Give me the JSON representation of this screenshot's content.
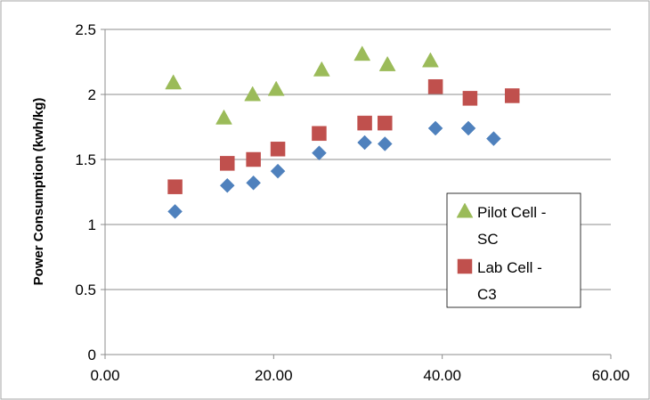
{
  "chart_data": {
    "type": "scatter",
    "title": "",
    "xlabel": "",
    "ylabel": "Power Consumption (kwh/kg)",
    "xlim": [
      0,
      60
    ],
    "ylim": [
      0,
      2.5
    ],
    "x_ticks": [
      0,
      20,
      40,
      60
    ],
    "x_tick_labels": [
      "0.00",
      "20.00",
      "40.00",
      "60.00"
    ],
    "y_ticks": [
      0,
      0.5,
      1,
      1.5,
      2,
      2.5
    ],
    "y_tick_labels": [
      "0",
      "0.5",
      "1",
      "1.5",
      "2",
      "2.5"
    ],
    "grid": "horizontal",
    "legend_position": "right",
    "series": [
      {
        "marker": "diamond",
        "color": "#4F81BD",
        "in_legend": false,
        "points": [
          [
            8.3,
            1.1
          ],
          [
            14.5,
            1.3
          ],
          [
            17.6,
            1.32
          ],
          [
            20.5,
            1.41
          ],
          [
            25.4,
            1.55
          ],
          [
            30.8,
            1.63
          ],
          [
            33.2,
            1.62
          ],
          [
            39.2,
            1.74
          ],
          [
            43.1,
            1.74
          ],
          [
            46.1,
            1.66
          ]
        ]
      },
      {
        "name": "Lab Cell - C3",
        "name_lines": [
          "Lab Cell -",
          "C3"
        ],
        "marker": "square",
        "color": "#C0504D",
        "in_legend": true,
        "points": [
          [
            8.3,
            1.29
          ],
          [
            14.5,
            1.47
          ],
          [
            17.6,
            1.5
          ],
          [
            20.5,
            1.58
          ],
          [
            25.4,
            1.7
          ],
          [
            30.8,
            1.78
          ],
          [
            33.2,
            1.78
          ],
          [
            39.2,
            2.06
          ],
          [
            43.3,
            1.97
          ],
          [
            48.3,
            1.99
          ]
        ]
      },
      {
        "name": "Pilot Cell - SC",
        "name_lines": [
          "Pilot Cell -",
          "SC"
        ],
        "marker": "triangle",
        "color": "#9BBB59",
        "in_legend": true,
        "points": [
          [
            8.1,
            2.09
          ],
          [
            14.1,
            1.82
          ],
          [
            17.5,
            2.0
          ],
          [
            20.3,
            2.04
          ],
          [
            25.7,
            2.19
          ],
          [
            30.5,
            2.31
          ],
          [
            33.5,
            2.23
          ],
          [
            38.6,
            2.26
          ]
        ]
      }
    ]
  }
}
